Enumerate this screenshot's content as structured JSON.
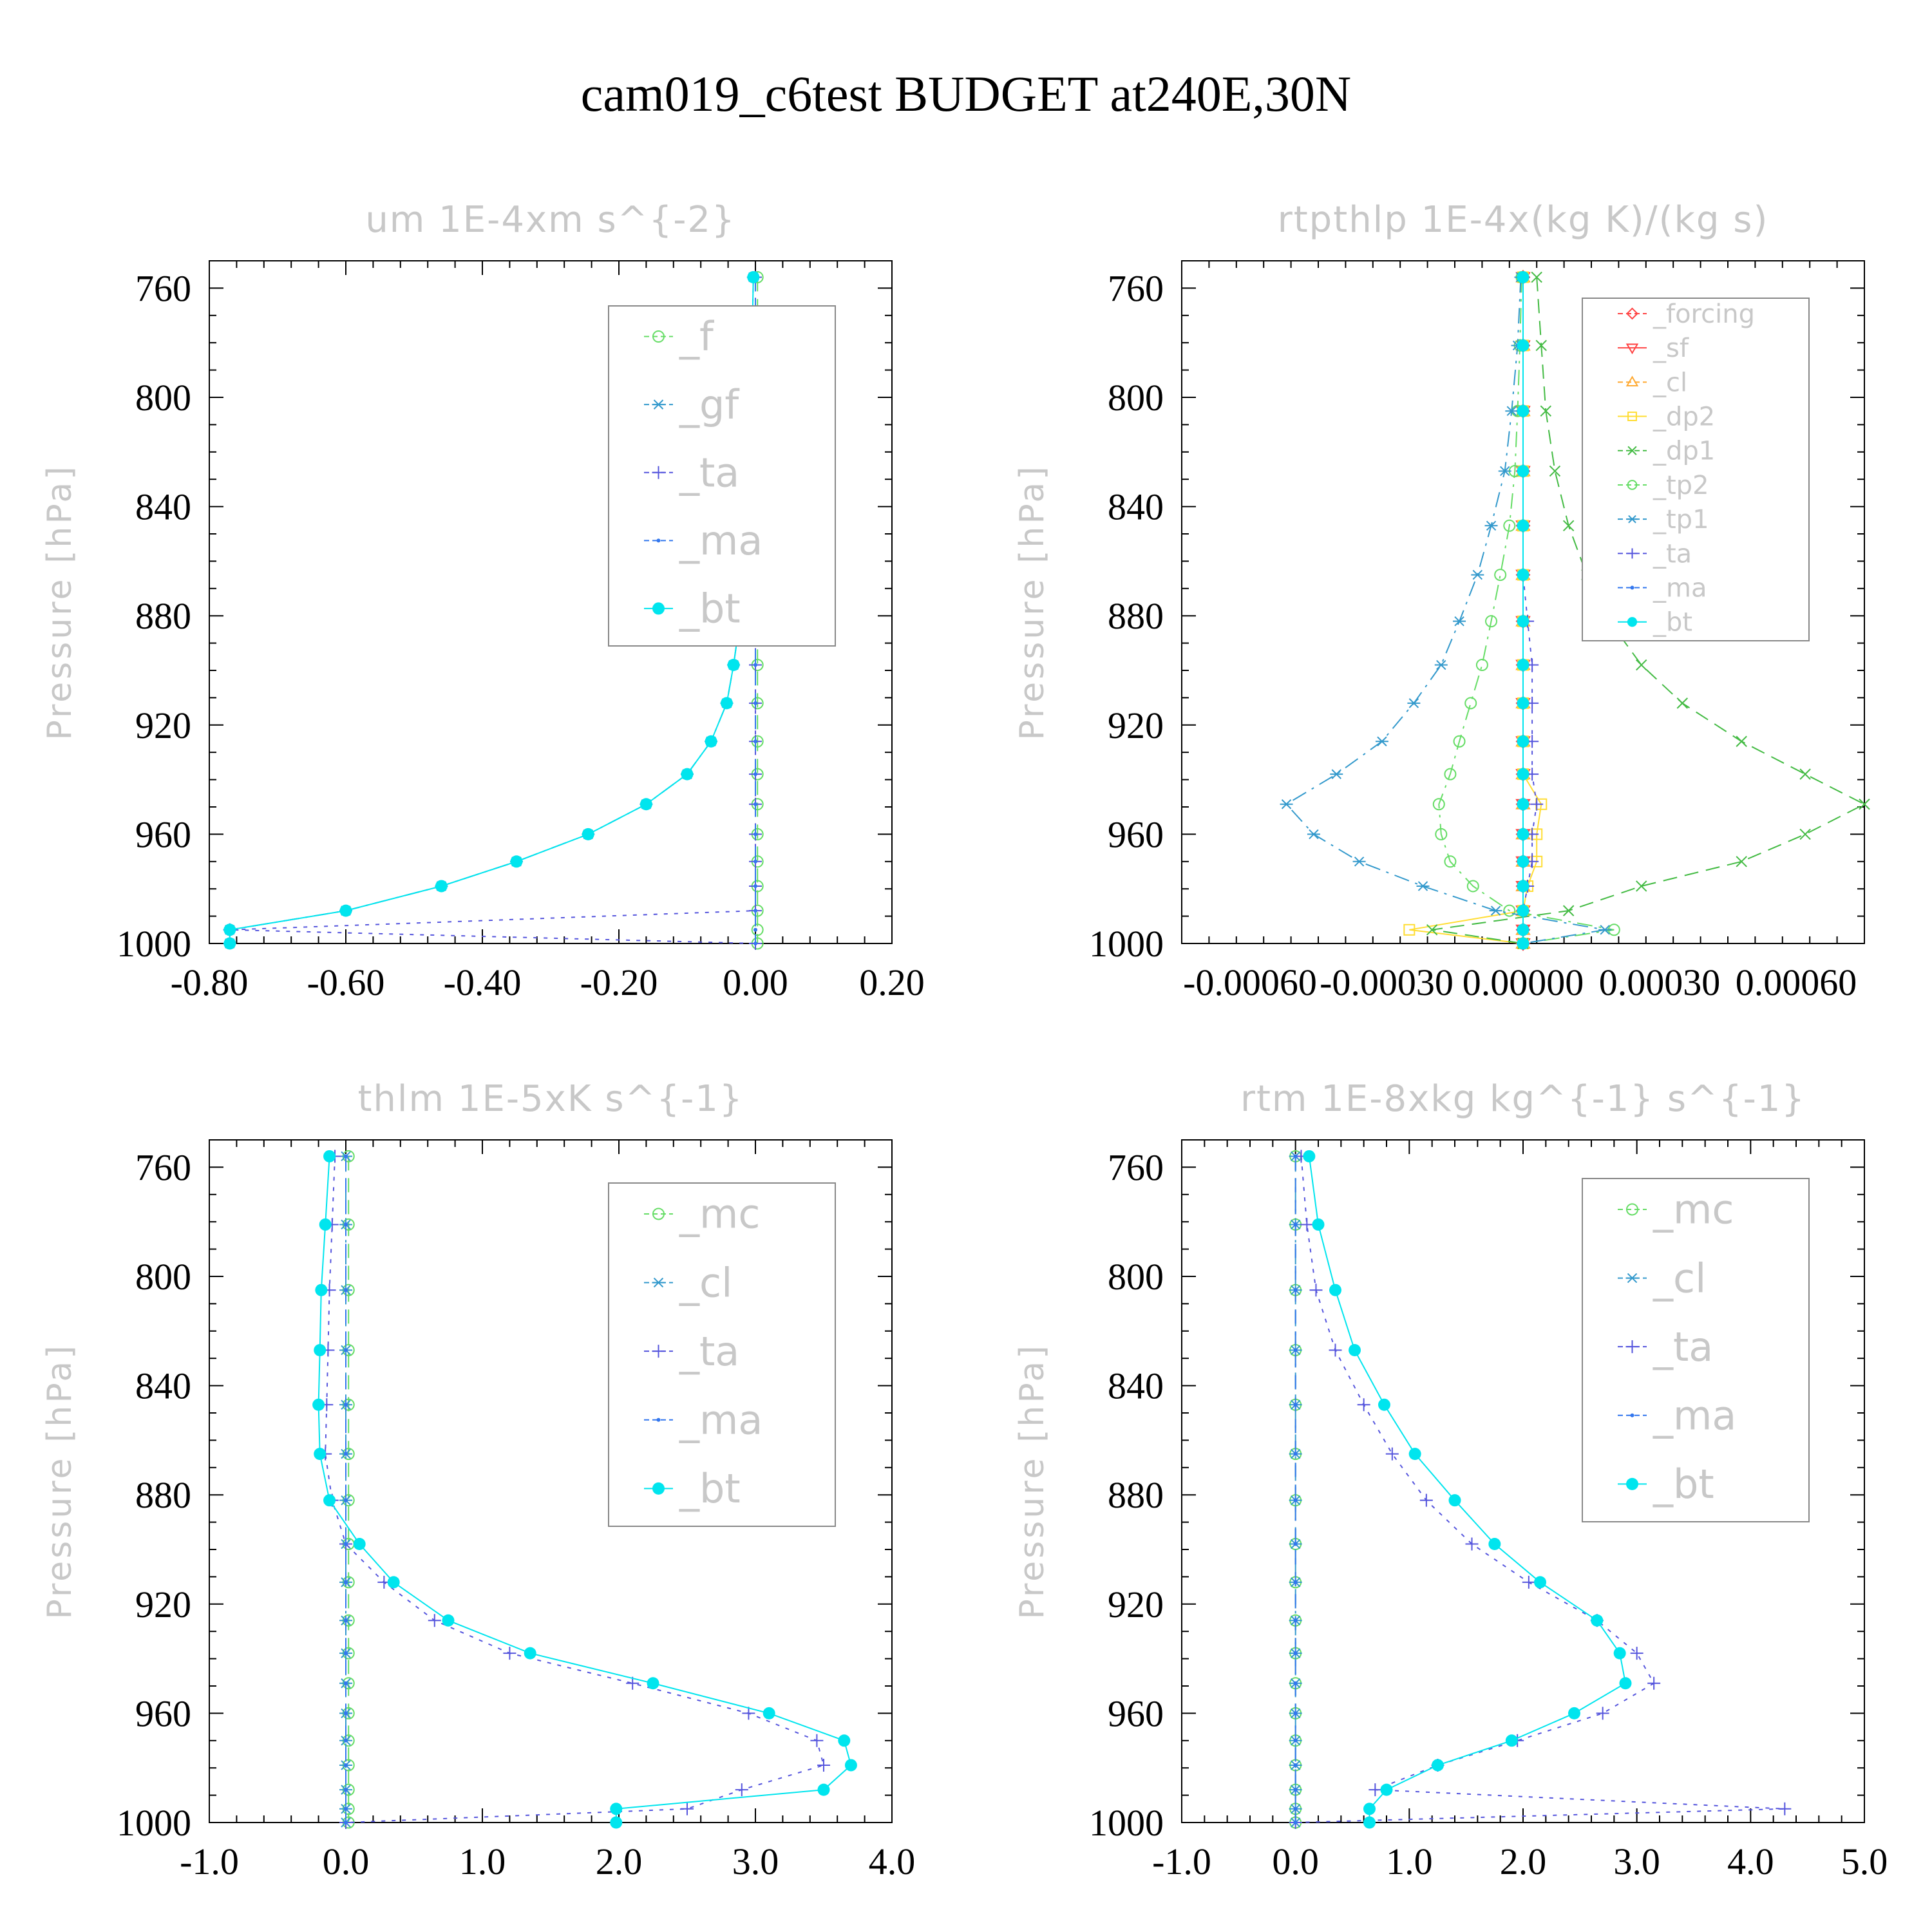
{
  "figure": {
    "title": "cam019_c6test  BUDGET at240E,30N"
  },
  "chart_data": [
    {
      "type": "line",
      "title": "um  1E-4xm s^{-2}",
      "ylabel": "Pressure [hPa]",
      "xlabel": "",
      "ylim": [
        1000,
        750
      ],
      "xlim": [
        -0.8,
        0.2
      ],
      "xticks": [
        "-0.80",
        "-0.60",
        "-0.40",
        "-0.20",
        "0.00",
        "0.20"
      ],
      "yticks": [
        "760",
        "800",
        "840",
        "880",
        "920",
        "960",
        "1000"
      ],
      "legend": {
        "position": "top-right",
        "size": "large"
      },
      "pressure_levels": [
        756,
        781,
        805,
        827,
        847,
        865,
        882,
        898,
        912,
        926,
        938,
        949,
        960,
        970,
        979,
        988,
        995,
        1000
      ],
      "series": [
        {
          "name": "_f",
          "color": "#66dd66",
          "marker": "circle-open",
          "dash": "dashed",
          "values": [
            0.003,
            0.003,
            0.003,
            0.003,
            0.003,
            0.003,
            0.003,
            0.003,
            0.003,
            0.003,
            0.003,
            0.003,
            0.003,
            0.003,
            0.003,
            0.003,
            0.003,
            0.003
          ]
        },
        {
          "name": "_gf",
          "color": "#3399cc",
          "marker": "asterisk",
          "dash": "dash-dot",
          "values": [
            -0.003,
            -0.005,
            -0.008,
            -0.011,
            -0.015,
            -0.019,
            -0.023,
            -0.032,
            -0.042,
            -0.065,
            -0.1,
            -0.16,
            -0.245,
            -0.35,
            -0.46,
            -0.6,
            -0.77,
            -0.77
          ]
        },
        {
          "name": "_ta",
          "color": "#5555dd",
          "marker": "plus",
          "dash": "dotted",
          "values": [
            0.0,
            0.0,
            0.0,
            0.0,
            0.0,
            0.0,
            0.0,
            0.0,
            0.0,
            0.0,
            0.0,
            0.0,
            0.0,
            0.0,
            0.0,
            0.0,
            -0.77,
            0.0
          ]
        },
        {
          "name": "_ma",
          "color": "#3377ee",
          "marker": "dot",
          "dash": "dashed",
          "values": [
            0.0,
            0.0,
            0.0,
            0.0,
            0.0,
            0.0,
            0.0,
            0.0,
            0.0,
            0.0,
            0.0,
            0.0,
            0.0,
            0.0,
            0.0,
            0.0,
            0.0,
            0.0
          ]
        },
        {
          "name": "_bt",
          "color": "#00e5ee",
          "marker": "filled-circle",
          "dash": "solid",
          "values": [
            -0.003,
            -0.005,
            -0.008,
            -0.011,
            -0.015,
            -0.019,
            -0.023,
            -0.032,
            -0.042,
            -0.065,
            -0.1,
            -0.16,
            -0.245,
            -0.35,
            -0.46,
            -0.6,
            -0.77,
            -0.77
          ]
        }
      ]
    },
    {
      "type": "line",
      "title": "rtpthlp  1E-4x(kg K)/(kg s)",
      "ylabel": "Pressure [hPa]",
      "xlabel": "",
      "ylim": [
        1000,
        750
      ],
      "xlim": [
        -0.00075,
        0.00075
      ],
      "xticks": [
        "-0.00060",
        "-0.00030",
        "0.00000",
        "0.00030",
        "0.00060"
      ],
      "xtick_values": [
        -0.0006,
        -0.0003,
        0.0,
        0.0003,
        0.0006
      ],
      "yticks": [
        "760",
        "800",
        "840",
        "880",
        "920",
        "960",
        "1000"
      ],
      "legend": {
        "position": "top-right",
        "size": "small"
      },
      "pressure_levels": [
        756,
        781,
        805,
        827,
        847,
        865,
        882,
        898,
        912,
        926,
        938,
        949,
        960,
        970,
        979,
        988,
        995,
        1000
      ],
      "series": [
        {
          "name": "_forcing",
          "color": "#ff4444",
          "marker": "diamond",
          "dash": "dashed",
          "values": [
            0,
            0,
            0,
            0,
            0,
            0,
            0,
            0,
            0,
            0,
            0,
            0,
            0,
            0,
            0,
            0,
            0,
            0
          ]
        },
        {
          "name": "_sf",
          "color": "#ff4444",
          "marker": "triangle-down",
          "dash": "solid",
          "values": [
            0,
            0,
            0,
            0,
            0,
            0,
            0,
            0,
            0,
            0,
            0,
            0,
            0,
            0,
            0,
            0,
            0,
            0
          ]
        },
        {
          "name": "_cl",
          "color": "#ffaa33",
          "marker": "triangle-up",
          "dash": "dashed",
          "values": [
            0,
            0,
            0,
            0,
            0,
            0,
            0,
            0,
            0,
            0,
            0,
            0,
            0,
            0,
            0,
            0,
            0,
            0
          ]
        },
        {
          "name": "_dp2",
          "color": "#ffdd33",
          "marker": "square",
          "dash": "solid",
          "values": [
            0,
            0,
            0,
            0,
            0,
            0,
            0,
            0,
            0,
            0,
            0,
            4e-05,
            3e-05,
            3e-05,
            1e-05,
            0.0,
            -0.00025,
            0.0
          ]
        },
        {
          "name": "_dp1",
          "color": "#44bb44",
          "marker": "x",
          "dash": "dashed",
          "values": [
            3e-05,
            4e-05,
            5e-05,
            7e-05,
            0.0001,
            0.00014,
            0.00019,
            0.00026,
            0.00035,
            0.00048,
            0.00062,
            0.00075,
            0.00062,
            0.00048,
            0.00026,
            0.0001,
            -0.0002,
            0.0
          ]
        },
        {
          "name": "_tp2",
          "color": "#66dd66",
          "marker": "circle-open",
          "dash": "dash-dot",
          "values": [
            -3e-06,
            -7e-06,
            -1.2e-05,
            -1.8e-05,
            -3e-05,
            -5e-05,
            -7e-05,
            -9e-05,
            -0.000115,
            -0.00014,
            -0.00016,
            -0.000185,
            -0.00018,
            -0.00016,
            -0.00011,
            -3e-05,
            0.0002,
            0.0
          ]
        },
        {
          "name": "_tp1",
          "color": "#3399cc",
          "marker": "asterisk",
          "dash": "dash-dot",
          "values": [
            -5e-06,
            -1.2e-05,
            -2.5e-05,
            -4e-05,
            -7e-05,
            -0.0001,
            -0.00014,
            -0.00018,
            -0.00024,
            -0.00031,
            -0.00041,
            -0.00052,
            -0.00046,
            -0.00036,
            -0.00022,
            -6e-05,
            0.00018,
            0.0
          ]
        },
        {
          "name": "_ta",
          "color": "#5555dd",
          "marker": "plus",
          "dash": "dotted",
          "values": [
            0,
            0,
            0,
            0,
            0,
            0,
            1e-05,
            2e-05,
            2e-05,
            2e-05,
            2e-05,
            3e-05,
            2e-05,
            2e-05,
            1e-05,
            0.0,
            0.0,
            0.0
          ]
        },
        {
          "name": "_ma",
          "color": "#3377ee",
          "marker": "dot",
          "dash": "dashed",
          "values": [
            0,
            0,
            0,
            0,
            0,
            0,
            0,
            0,
            0,
            0,
            0,
            0,
            0,
            0,
            0,
            0,
            0,
            0
          ]
        },
        {
          "name": "_bt",
          "color": "#00e5ee",
          "marker": "filled-circle",
          "dash": "solid",
          "values": [
            0,
            0,
            0,
            0,
            0,
            0,
            0,
            0,
            0,
            0,
            0,
            0,
            0,
            0,
            0,
            0,
            0,
            0
          ]
        }
      ]
    },
    {
      "type": "line",
      "title": "thlm  1E-5xK s^{-1}",
      "ylabel": "Pressure [hPa]",
      "xlabel": "",
      "ylim": [
        1000,
        750
      ],
      "xlim": [
        -1.0,
        4.0
      ],
      "xticks": [
        "-1.0",
        "0.0",
        "1.0",
        "2.0",
        "3.0",
        "4.0"
      ],
      "yticks": [
        "760",
        "800",
        "840",
        "880",
        "920",
        "960",
        "1000"
      ],
      "legend": {
        "position": "top-right",
        "size": "large"
      },
      "pressure_levels": [
        756,
        781,
        805,
        827,
        847,
        865,
        882,
        898,
        912,
        926,
        938,
        949,
        960,
        970,
        979,
        988,
        995,
        1000
      ],
      "series": [
        {
          "name": "_mc",
          "color": "#66dd66",
          "marker": "circle-open",
          "dash": "dashed",
          "values": [
            0.02,
            0.02,
            0.02,
            0.02,
            0.02,
            0.02,
            0.02,
            0.02,
            0.02,
            0.02,
            0.02,
            0.02,
            0.02,
            0.02,
            0.02,
            0.02,
            0.02,
            0.02
          ]
        },
        {
          "name": "_cl",
          "color": "#3399cc",
          "marker": "asterisk",
          "dash": "dash-dot",
          "values": [
            0.0,
            0.0,
            0.0,
            0.0,
            0.0,
            0.0,
            0.0,
            0.0,
            0.0,
            0.0,
            0.0,
            0.0,
            0.0,
            0.0,
            0.0,
            0.0,
            0.0,
            0.0
          ]
        },
        {
          "name": "_ta",
          "color": "#5555dd",
          "marker": "plus",
          "dash": "dotted",
          "values": [
            -0.08,
            -0.1,
            -0.12,
            -0.13,
            -0.14,
            -0.15,
            -0.1,
            0.0,
            0.28,
            0.65,
            1.2,
            2.1,
            2.95,
            3.45,
            3.5,
            2.9,
            2.5,
            0.0
          ]
        },
        {
          "name": "_ma",
          "color": "#3377ee",
          "marker": "dot",
          "dash": "dashed",
          "values": [
            0.0,
            0.0,
            0.0,
            0.0,
            0.0,
            0.0,
            0.0,
            0.0,
            0.0,
            0.0,
            0.0,
            0.0,
            0.0,
            0.0,
            0.0,
            0.0,
            0.0,
            0.0
          ]
        },
        {
          "name": "_bt",
          "color": "#00e5ee",
          "marker": "filled-circle",
          "dash": "solid",
          "values": [
            -0.12,
            -0.15,
            -0.18,
            -0.19,
            -0.2,
            -0.19,
            -0.12,
            0.1,
            0.35,
            0.75,
            1.35,
            2.25,
            3.1,
            3.65,
            3.7,
            3.5,
            1.98,
            1.98
          ]
        }
      ]
    },
    {
      "type": "line",
      "title": "rtm  1E-8xkg kg^{-1} s^{-1}",
      "ylabel": "Pressure [hPa]",
      "xlabel": "",
      "ylim": [
        1000,
        750
      ],
      "xlim": [
        -1.0,
        5.0
      ],
      "xticks": [
        "-1.0",
        "0.0",
        "1.0",
        "2.0",
        "3.0",
        "4.0",
        "5.0"
      ],
      "yticks": [
        "760",
        "800",
        "840",
        "880",
        "920",
        "960",
        "1000"
      ],
      "legend": {
        "position": "top-right",
        "size": "large"
      },
      "pressure_levels": [
        756,
        781,
        805,
        827,
        847,
        865,
        882,
        898,
        912,
        926,
        938,
        949,
        960,
        970,
        979,
        988,
        995,
        1000
      ],
      "series": [
        {
          "name": "_mc",
          "color": "#66dd66",
          "marker": "circle-open",
          "dash": "dashed",
          "values": [
            0.0,
            0.0,
            0.0,
            0.0,
            0.0,
            0.0,
            0.0,
            0.0,
            0.0,
            0.0,
            0.0,
            0.0,
            0.0,
            0.0,
            0.0,
            0.0,
            0.0,
            0.0
          ]
        },
        {
          "name": "_cl",
          "color": "#3399cc",
          "marker": "asterisk",
          "dash": "dash-dot",
          "values": [
            0.0,
            0.0,
            0.0,
            0.0,
            0.0,
            0.0,
            0.0,
            0.0,
            0.0,
            0.0,
            0.0,
            0.0,
            0.0,
            0.0,
            0.0,
            0.0,
            0.0,
            0.0
          ]
        },
        {
          "name": "_ta",
          "color": "#5555dd",
          "marker": "plus",
          "dash": "dotted",
          "values": [
            0.05,
            0.1,
            0.18,
            0.35,
            0.6,
            0.85,
            1.15,
            1.55,
            2.05,
            2.65,
            3.0,
            3.15,
            2.7,
            1.95,
            1.25,
            0.7,
            4.3,
            0.0
          ]
        },
        {
          "name": "_ma",
          "color": "#3377ee",
          "marker": "dot",
          "dash": "dashed",
          "values": [
            0.0,
            0.0,
            0.0,
            0.0,
            0.0,
            0.0,
            0.0,
            0.0,
            0.0,
            0.0,
            0.0,
            0.0,
            0.0,
            0.0,
            0.0,
            0.0,
            0.0,
            0.0
          ]
        },
        {
          "name": "_bt",
          "color": "#00e5ee",
          "marker": "filled-circle",
          "dash": "solid",
          "values": [
            0.12,
            0.2,
            0.35,
            0.52,
            0.78,
            1.05,
            1.4,
            1.75,
            2.15,
            2.65,
            2.85,
            2.9,
            2.45,
            1.9,
            1.25,
            0.8,
            0.65,
            0.65
          ]
        }
      ]
    }
  ]
}
